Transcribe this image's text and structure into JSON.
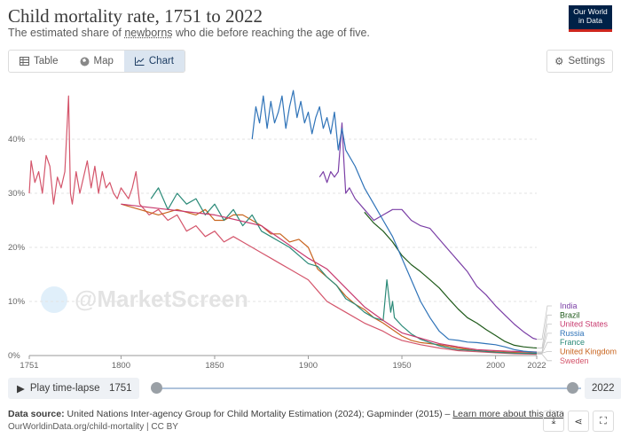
{
  "header": {
    "title": "Child mortality rate, 1751 to 2022",
    "subtitle_pre": "The estimated share of ",
    "subtitle_link": "newborns",
    "subtitle_post": " who die before reaching the age of five.",
    "logo_line1": "Our World",
    "logo_line2": "in Data"
  },
  "tabs": [
    {
      "label": "Table",
      "icon": "table-icon"
    },
    {
      "label": "Map",
      "icon": "globe-icon"
    },
    {
      "label": "Chart",
      "icon": "line-chart-icon"
    }
  ],
  "active_tab": "Chart",
  "settings_label": "Settings",
  "timeline": {
    "play_label": "Play time-lapse",
    "start": "1751",
    "end": "2022"
  },
  "footer": {
    "source_label": "Data source:",
    "source_text": " United Nations Inter-agency Group for Child Mortality Estimation (2024); Gapminder (2015) – ",
    "link": "Learn more about this data",
    "url": "OurWorldinData.org/child-mortality | CC BY"
  },
  "watermark": "@MarketScreen",
  "colors": {
    "India": "#7b3fa6",
    "Brazil": "#1f5a1a",
    "United States": "#c83a6e",
    "Russia": "#2f73b8",
    "France": "#2b8a78",
    "United Kingdom": "#c8641e",
    "Sweden": "#d4556b"
  },
  "chart_data": {
    "type": "line",
    "title": "Child mortality rate, 1751 to 2022",
    "xlim": [
      1751,
      2022
    ],
    "ylim": [
      0,
      50
    ],
    "x_ticks": [
      "1751",
      "1800",
      "1850",
      "1900",
      "1950",
      "2000",
      "2022"
    ],
    "y_ticks": [
      "0%",
      "10%",
      "20%",
      "30%",
      "40%"
    ],
    "series": [
      {
        "name": "India",
        "x": [
          1906,
          1908,
          1910,
          1912,
          1914,
          1916,
          1918,
          1919,
          1920,
          1922,
          1925,
          1930,
          1935,
          1940,
          1945,
          1950,
          1955,
          1960,
          1965,
          1970,
          1975,
          1980,
          1985,
          1990,
          1995,
          2000,
          2005,
          2010,
          2015,
          2020,
          2022
        ],
        "values": [
          33,
          34,
          32,
          34,
          33,
          34,
          43,
          36,
          30,
          31,
          29,
          27,
          25,
          26,
          27,
          27,
          25,
          24,
          23.5,
          21.5,
          19.5,
          17.5,
          15.5,
          12.8,
          11.2,
          9.2,
          7.5,
          5.8,
          4.4,
          3.2,
          3.0
        ]
      },
      {
        "name": "Brazil",
        "x": [
          1930,
          1935,
          1940,
          1945,
          1950,
          1955,
          1960,
          1965,
          1970,
          1975,
          1980,
          1985,
          1990,
          1995,
          2000,
          2005,
          2010,
          2015,
          2020,
          2022
        ],
        "values": [
          26.5,
          24.5,
          23,
          21,
          18.5,
          16.8,
          15.5,
          14,
          12.5,
          10.5,
          8.6,
          7.0,
          6.0,
          4.8,
          3.7,
          2.6,
          1.9,
          1.6,
          1.45,
          1.4
        ]
      },
      {
        "name": "Russia",
        "x": [
          1870,
          1872,
          1874,
          1876,
          1878,
          1880,
          1882,
          1884,
          1886,
          1888,
          1890,
          1892,
          1894,
          1896,
          1898,
          1900,
          1902,
          1904,
          1906,
          1908,
          1910,
          1912,
          1914,
          1916,
          1918,
          1920,
          1925,
          1930,
          1935,
          1940,
          1945,
          1950,
          1955,
          1960,
          1965,
          1970,
          1975,
          1980,
          1985,
          1990,
          1995,
          2000,
          2005,
          2010,
          2015,
          2022
        ],
        "values": [
          40,
          46,
          43,
          48,
          42,
          47,
          43,
          45,
          48,
          42,
          46,
          49,
          44,
          47,
          43,
          45,
          41,
          44,
          46,
          42,
          44,
          41,
          45,
          38,
          42,
          38,
          35,
          31,
          28,
          25,
          22,
          18,
          14,
          10,
          7,
          4.5,
          3.0,
          2.8,
          2.5,
          2.4,
          2.2,
          2.0,
          1.6,
          1.1,
          0.8,
          0.6
        ]
      },
      {
        "name": "France",
        "x": [
          1816,
          1820,
          1825,
          1830,
          1835,
          1840,
          1845,
          1850,
          1855,
          1860,
          1865,
          1870,
          1875,
          1880,
          1885,
          1890,
          1895,
          1900,
          1905,
          1910,
          1915,
          1920,
          1925,
          1930,
          1935,
          1940,
          1942,
          1944,
          1945,
          1946,
          1950,
          1955,
          1960,
          1965,
          1970,
          1975,
          1980,
          1990,
          2000,
          2010,
          2022
        ],
        "values": [
          29,
          31,
          27,
          30,
          28,
          29,
          26,
          28,
          25,
          27,
          24,
          26,
          23,
          22,
          21,
          20,
          18.5,
          17,
          16.5,
          14.5,
          13,
          10.5,
          9.5,
          8,
          7,
          6.5,
          14,
          8,
          10,
          7,
          5.5,
          4,
          3,
          2.4,
          1.8,
          1.4,
          1.1,
          0.9,
          0.6,
          0.45,
          0.4
        ]
      },
      {
        "name": "United Kingdom",
        "x": [
          1800,
          1810,
          1820,
          1830,
          1840,
          1845,
          1850,
          1855,
          1860,
          1865,
          1870,
          1875,
          1880,
          1885,
          1890,
          1895,
          1900,
          1905,
          1910,
          1915,
          1920,
          1925,
          1930,
          1935,
          1940,
          1945,
          1950,
          1955,
          1960,
          1970,
          1980,
          1990,
          2000,
          2010,
          2022
        ],
        "values": [
          28,
          27,
          26,
          27,
          26,
          27,
          25,
          25,
          26,
          26,
          25,
          24,
          22.5,
          22.5,
          21,
          21.5,
          20,
          16,
          14.5,
          13,
          11,
          9.5,
          8.5,
          7,
          6,
          4.8,
          3.6,
          2.8,
          2.4,
          2.0,
          1.4,
          0.9,
          0.7,
          0.55,
          0.45
        ]
      },
      {
        "name": "Sweden",
        "x": [
          1751,
          1752,
          1754,
          1756,
          1758,
          1760,
          1762,
          1764,
          1766,
          1768,
          1770,
          1772,
          1773,
          1774,
          1776,
          1778,
          1780,
          1782,
          1784,
          1786,
          1788,
          1790,
          1792,
          1794,
          1796,
          1798,
          1800,
          1802,
          1804,
          1806,
          1808,
          1810,
          1815,
          1820,
          1825,
          1830,
          1835,
          1840,
          1845,
          1850,
          1855,
          1860,
          1865,
          1870,
          1875,
          1880,
          1885,
          1890,
          1895,
          1900,
          1905,
          1910,
          1920,
          1930,
          1940,
          1945,
          1950,
          1960,
          1970,
          1980,
          1990,
          2000,
          2010,
          2022
        ],
        "values": [
          30,
          36,
          32,
          34,
          30,
          37,
          35,
          28,
          33,
          31,
          34,
          48,
          30,
          28,
          34,
          30,
          33,
          36,
          31,
          35,
          30,
          34,
          31,
          32,
          30,
          29,
          31,
          30,
          29,
          31,
          34,
          28,
          26,
          27,
          25,
          26,
          23,
          24,
          22,
          23,
          21,
          22,
          21,
          20,
          19,
          18,
          17,
          16,
          15,
          14,
          12,
          10,
          8,
          6,
          4.5,
          3.5,
          2.8,
          2.0,
          1.4,
          0.9,
          0.7,
          0.5,
          0.35,
          0.25
        ]
      },
      {
        "name": "United States",
        "x": [
          1800,
          1825,
          1850,
          1875,
          1900,
          1910,
          1920,
          1930,
          1940,
          1950,
          1960,
          1970,
          1980,
          1990,
          2000,
          2010,
          2022
        ],
        "values": [
          28,
          27,
          26,
          24,
          18,
          16,
          12.5,
          9,
          6.5,
          4.2,
          3.2,
          2.2,
          1.6,
          1.1,
          0.9,
          0.75,
          0.65
        ]
      }
    ],
    "legend_order": [
      "India",
      "Brazil",
      "United States",
      "Russia",
      "France",
      "United Kingdom",
      "Sweden"
    ]
  }
}
